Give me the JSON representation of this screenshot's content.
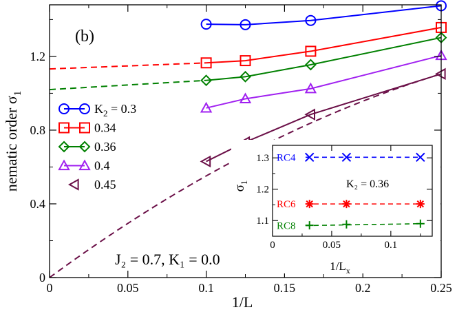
{
  "panel_label": "(b)",
  "chart_data": [
    {
      "type": "line",
      "title": "",
      "xlabel": "1/L",
      "ylabel": "nematic order σ",
      "ylabel_sub": "1",
      "xlim": [
        0,
        0.25
      ],
      "ylim": [
        0,
        1.48
      ],
      "xticks": [
        0,
        0.05,
        0.1,
        0.15,
        0.2,
        0.25
      ],
      "xtick_labels": [
        "0",
        "0.05",
        "0.1",
        "0.15",
        "0.2",
        "0.25"
      ],
      "yticks": [
        0,
        0.4,
        0.8,
        1.2
      ],
      "ytick_labels": [
        "0",
        "0.4",
        "0.8",
        "1.2"
      ],
      "grid": false,
      "legend_position": "left",
      "legend_title": {
        "prefix": "K",
        "sub": "2",
        "suffix": " = 0.3"
      },
      "annotation": "J₂ = 0.7, K₁ = 0.0",
      "series": [
        {
          "name": "K2 = 0.3",
          "legend_label": "",
          "color": "#0000ff",
          "marker": "circle",
          "x": [
            0.1,
            0.125,
            0.1667,
            0.25
          ],
          "y": [
            1.375,
            1.372,
            1.395,
            1.475
          ]
        },
        {
          "name": "0.34",
          "legend_label": "0.34",
          "color": "#ff0000",
          "marker": "square",
          "x": [
            0.1,
            0.125,
            0.1667,
            0.25
          ],
          "y": [
            1.165,
            1.177,
            1.228,
            1.357
          ],
          "fit": {
            "x": [
              0,
              0.1
            ],
            "y": [
              1.132,
              1.165
            ]
          }
        },
        {
          "name": "0.36",
          "legend_label": "0.36",
          "color": "#008000",
          "marker": "diamond",
          "x": [
            0.1,
            0.125,
            0.1667,
            0.25
          ],
          "y": [
            1.07,
            1.09,
            1.155,
            1.302
          ],
          "fit": {
            "x": [
              0,
              0.1
            ],
            "y": [
              1.02,
              1.07
            ]
          }
        },
        {
          "name": "0.4",
          "legend_label": "0.4",
          "color": "#a020f0",
          "marker": "triangle-up",
          "x": [
            0.1,
            0.125,
            0.1667,
            0.25
          ],
          "y": [
            0.92,
            0.97,
            1.025,
            1.205
          ]
        },
        {
          "name": "0.45",
          "legend_label": "0.45",
          "color": "#6b1048",
          "marker": "triangle-left",
          "x": [
            0.1,
            0.125,
            0.1667,
            0.25
          ],
          "y": [
            0.63,
            0.735,
            0.885,
            1.105
          ],
          "fit": {
            "x": [
              0,
              0.25
            ],
            "y": [
              0,
              1.105
            ],
            "quadratic": -7.3
          }
        }
      ]
    },
    {
      "type": "line",
      "title": "",
      "xlabel": "1/L",
      "xlabel_sub": "x",
      "ylabel": "σ",
      "ylabel_sub": "1",
      "xlim": [
        0,
        0.135
      ],
      "ylim": [
        1.05,
        1.34
      ],
      "xticks": [
        0,
        0.05,
        0.1
      ],
      "xtick_labels": [
        "0",
        "0.05",
        "0.1"
      ],
      "yticks": [
        1.1,
        1.2,
        1.3
      ],
      "ytick_labels": [
        "1.1",
        "1.2",
        "1.3"
      ],
      "annotation": "K₂ = 0.36",
      "series": [
        {
          "name": "RC4",
          "color": "#0000ff",
          "marker": "x",
          "x": [
            0.03125,
            0.0625,
            0.125
          ],
          "y": [
            1.302,
            1.302,
            1.302
          ],
          "fit": {
            "x": [
              0,
              0.125
            ],
            "y": [
              1.302,
              1.302
            ]
          }
        },
        {
          "name": "RC6",
          "color": "#ff0000",
          "marker": "asterisk",
          "x": [
            0.03125,
            0.0625,
            0.125
          ],
          "y": [
            1.153,
            1.153,
            1.153
          ],
          "fit": {
            "x": [
              0,
              0.125
            ],
            "y": [
              1.153,
              1.153
            ]
          }
        },
        {
          "name": "RC8",
          "color": "#008000",
          "marker": "plus",
          "x": [
            0.03125,
            0.0625,
            0.125
          ],
          "y": [
            1.085,
            1.088,
            1.09
          ],
          "fit": {
            "x": [
              0,
              0.125
            ],
            "y": [
              1.084,
              1.09
            ]
          }
        }
      ]
    }
  ]
}
